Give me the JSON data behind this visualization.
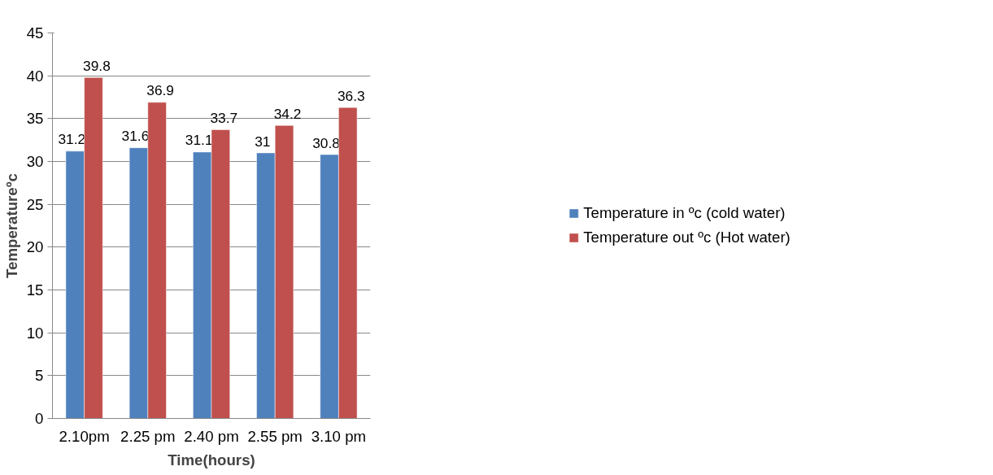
{
  "chart_data": {
    "type": "bar",
    "xlabel": "Time(hours)",
    "ylabel": "Temperatureºc",
    "categories": [
      "2.10pm",
      "2.25 pm",
      "2.40 pm",
      "2.55 pm",
      "3.10 pm"
    ],
    "series": [
      {
        "name": "Temperature in ºc (cold water)",
        "color": "#4f81bd",
        "values": [
          31.2,
          31.6,
          31.1,
          31,
          30.8
        ]
      },
      {
        "name": "Temperature out ºc (Hot water)",
        "color": "#c0504d",
        "values": [
          39.8,
          36.9,
          33.7,
          34.2,
          36.3
        ]
      }
    ],
    "ylim": [
      0,
      45
    ],
    "yticks": [
      0,
      5,
      10,
      15,
      20,
      25,
      30,
      35,
      40,
      45
    ],
    "grid": "y",
    "legend": "right",
    "data_labels": true
  }
}
